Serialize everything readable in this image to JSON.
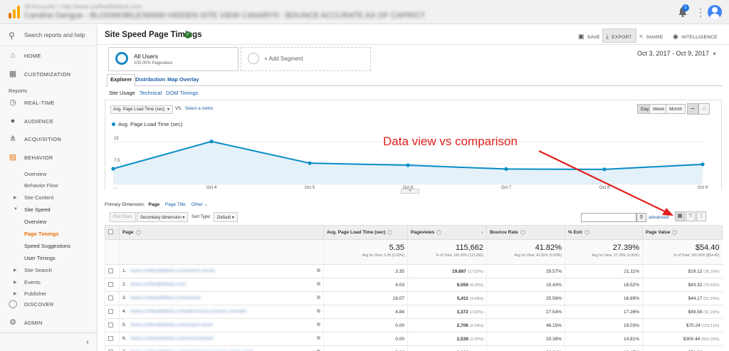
{
  "account": {
    "line1": "All Accounts > http://www.ucsfhealthblank.com",
    "line2": "Caroline Dengue - BLOGMOBILE/WWW HIDDEN SITE VIEW CANARY6 - BOUNCE ACCURATE AS OF CAPRICT"
  },
  "topbar": {
    "notification_count": "1",
    "kebab": "⋮"
  },
  "sidebar": {
    "search": "Search reports and help",
    "home": "HOME",
    "customization": "CUSTOMIZATION",
    "reports_header": "Reports",
    "realtime": "REAL-TIME",
    "audience": "AUDIENCE",
    "acquisition": "ACQUISITION",
    "behavior": "BEHAVIOR",
    "overview": "Overview",
    "behavior_flow": "Behavior Flow",
    "site_content": "Site Content",
    "site_speed": "Site Speed",
    "ss_overview": "Overview",
    "page_timings": "Page Timings",
    "speed_suggestions": "Speed Suggestions",
    "user_timings": "User Timings",
    "site_search": "Site Search",
    "events": "Events",
    "publisher": "Publisher",
    "discover": "DISCOVER",
    "admin": "ADMIN",
    "collapse": "‹"
  },
  "header": {
    "title": "Site Speed Page Timings",
    "save": "SAVE",
    "export": "EXPORT",
    "share": "SHARE",
    "intelligence": "INTELLIGENCE"
  },
  "segments": {
    "all_users": "All Users",
    "all_users_sub": "100.00% Pageviews",
    "add_segment": "+ Add Segment"
  },
  "date_range": "Oct 3, 2017 - Oct 9, 2017",
  "tabs": {
    "explorer": "Explorer",
    "distribution": "Distribution",
    "map_overlay": "Map Overlay"
  },
  "subtabs": {
    "site_usage": "Site Usage",
    "technical": "Technical",
    "dom_timings": "DOM Timings"
  },
  "chart_controls": {
    "metric": "Avg. Page Load Time (sec)",
    "vs": "VS.",
    "select_metric": "Select a metric",
    "day": "Day",
    "week": "Week",
    "month": "Month"
  },
  "annotation": "Data view vs comparison",
  "chart_data": {
    "type": "line",
    "series": [
      {
        "name": "Avg. Page Load Time (sec)",
        "values": [
          5.1,
          14.4,
          7.0,
          6.3,
          5.0,
          4.9,
          6.6
        ],
        "color": "#058dc7"
      }
    ],
    "x_ticks": [
      "...",
      "Oct 4",
      "Oct 5",
      "Oct 6",
      "Oct 7",
      "Oct 8",
      "Oct 9"
    ],
    "y_ticks": [
      "15",
      "7.5"
    ],
    "ylim": [
      0,
      17
    ]
  },
  "table_controls": {
    "primary_dimension": "Primary Dimension:",
    "page": "Page",
    "page_title": "Page Title",
    "other": "Other ⌄",
    "plot_rows": "Plot Rows",
    "secondary_dimension": "Secondary dimension",
    "sort_type": "Sort Type:",
    "default": "Default",
    "advanced": "advanced"
  },
  "table": {
    "headers": [
      "Page",
      "Avg. Page Load Time (sec)",
      "Pageviews",
      "Bounce Rate",
      "% Exit",
      "Page Value"
    ],
    "summary": [
      {
        "big": "5.35",
        "small": "Avg for View: 5.35 (0.00%)"
      },
      {
        "big": "115,662",
        "small": "% of Total: 100.00% (115,662)"
      },
      {
        "big": "41.82%",
        "small": "Avg for View: 41.82% (0.00%)"
      },
      {
        "big": "27.39%",
        "small": "Avg for View: 27.39% (0.00%)"
      },
      {
        "big": "$54.40",
        "small": "% of Total: 100.00% ($54.40)"
      }
    ],
    "rows": [
      {
        "n": "1.",
        "page": "/www.ucsfhealthblank.com/search-results",
        "load": "3.35",
        "pv": "19,687",
        "pvp": "(17.02%)",
        "br": "29.57%",
        "exit": "21.11%",
        "val": "$19.12",
        "valp": "(35.15%)"
      },
      {
        "n": "2.",
        "page": "/www.ucsfhealthblank.com/",
        "load": "4.03",
        "pv": "9,559",
        "pvp": "(8.26%)",
        "br": "15.43%",
        "exit": "18.52%",
        "val": "$43.32",
        "valp": "(79.63%)"
      },
      {
        "n": "3.",
        "page": "/www.ucsfhealthblank.com/search/",
        "load": "16.07",
        "pv": "5,411",
        "pvp": "(4.68%)",
        "br": "25.56%",
        "exit": "16.89%",
        "val": "$44.17",
        "valp": "(81.20%)"
      },
      {
        "n": "4.",
        "page": "/www.ucsfhealthblank.com/admissions-process-overview",
        "load": "4.84",
        "pv": "3,372",
        "pvp": "(2.92%)",
        "br": "27.54%",
        "exit": "17.26%",
        "val": "$49.59",
        "valp": "(91.15%)"
      },
      {
        "n": "5.",
        "page": "/www.ucsfhealthblank.com/search-result",
        "load": "0.00",
        "pv": "2,706",
        "pvp": "(2.34%)",
        "br": "46.15%",
        "exit": "19.03%",
        "val": "$70.24",
        "valp": "(129.11%)"
      },
      {
        "n": "6.",
        "page": "/www.ucsfhealthblank.com/search/online",
        "load": "0.00",
        "pv": "2,539",
        "pvp": "(2.20%)",
        "br": "20.39%",
        "exit": "14.81%",
        "val": "$300.44",
        "valp": "(552.26%)"
      },
      {
        "n": "7.",
        "page": "/www.ucsfhealthblank.com/admissions-process-online-study",
        "load": "3.82",
        "pv": "2,168",
        "pvp": "(1.87%)",
        "br": "26.34%",
        "exit": "18.45%",
        "val": "$51.86",
        "valp": "(95.33%)"
      }
    ]
  }
}
